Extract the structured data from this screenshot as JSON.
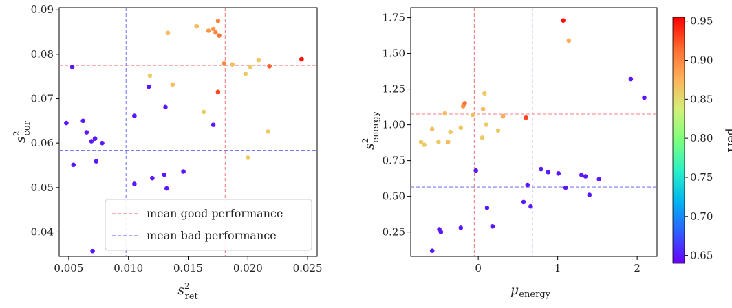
{
  "colors": {
    "good_line": "#f08080",
    "bad_line": "#7b7bf0",
    "colormap": [
      "#6a00ff",
      "#2f5cff",
      "#00b4f0",
      "#2af0c8",
      "#7dff7d",
      "#d2f07a",
      "#ffb15a",
      "#ff6a2e",
      "#ff0000"
    ]
  },
  "legend": {
    "good": "mean good performance",
    "bad": "mean bad performance"
  },
  "colorbar": {
    "label": "perf",
    "ticks": [
      "0.65",
      "0.70",
      "0.75",
      "0.80",
      "0.85",
      "0.90",
      "0.95"
    ],
    "range": [
      0.64,
      0.955
    ]
  },
  "chart_data": [
    {
      "type": "scatter",
      "xlabel": {
        "base": "s",
        "sup": "2",
        "sub": "ret"
      },
      "ylabel": {
        "base": "s",
        "sup": "2",
        "sub": "cor"
      },
      "xlim": [
        0.0042,
        0.0258
      ],
      "ylim": [
        0.0345,
        0.0905
      ],
      "xticks": [
        0.005,
        0.01,
        0.015,
        0.02,
        0.025
      ],
      "xtick_labels": [
        "0.005",
        "0.010",
        "0.015",
        "0.020",
        "0.025"
      ],
      "yticks": [
        0.04,
        0.05,
        0.06,
        0.07,
        0.08,
        0.09
      ],
      "ytick_labels": [
        "0.04",
        "0.05",
        "0.06",
        "0.07",
        "0.08",
        "0.09"
      ],
      "hlines": {
        "good": 0.0775,
        "bad": 0.0584
      },
      "vlines": {
        "good": 0.0181,
        "bad": 0.0098
      },
      "legend_position": "lower-right",
      "points": [
        {
          "x": 0.0053,
          "y": 0.0771,
          "perf": 0.65
        },
        {
          "x": 0.0048,
          "y": 0.0645,
          "perf": 0.65
        },
        {
          "x": 0.0054,
          "y": 0.0551,
          "perf": 0.65
        },
        {
          "x": 0.0062,
          "y": 0.065,
          "perf": 0.65
        },
        {
          "x": 0.0065,
          "y": 0.0624,
          "perf": 0.65
        },
        {
          "x": 0.0069,
          "y": 0.0604,
          "perf": 0.65
        },
        {
          "x": 0.0072,
          "y": 0.061,
          "perf": 0.65
        },
        {
          "x": 0.0073,
          "y": 0.0559,
          "perf": 0.65
        },
        {
          "x": 0.0078,
          "y": 0.06,
          "perf": 0.65
        },
        {
          "x": 0.007,
          "y": 0.0357,
          "perf": 0.65
        },
        {
          "x": 0.0105,
          "y": 0.0661,
          "perf": 0.65
        },
        {
          "x": 0.0105,
          "y": 0.0508,
          "perf": 0.65
        },
        {
          "x": 0.0117,
          "y": 0.0727,
          "perf": 0.65
        },
        {
          "x": 0.012,
          "y": 0.0521,
          "perf": 0.65
        },
        {
          "x": 0.013,
          "y": 0.0529,
          "perf": 0.65
        },
        {
          "x": 0.0131,
          "y": 0.0681,
          "perf": 0.65
        },
        {
          "x": 0.0132,
          "y": 0.0498,
          "perf": 0.65
        },
        {
          "x": 0.0146,
          "y": 0.0536,
          "perf": 0.65
        },
        {
          "x": 0.0171,
          "y": 0.0641,
          "perf": 0.65
        },
        {
          "x": 0.0118,
          "y": 0.0752,
          "perf": 0.86
        },
        {
          "x": 0.0133,
          "y": 0.0848,
          "perf": 0.87
        },
        {
          "x": 0.0137,
          "y": 0.0732,
          "perf": 0.87
        },
        {
          "x": 0.0157,
          "y": 0.0863,
          "perf": 0.87
        },
        {
          "x": 0.0163,
          "y": 0.067,
          "perf": 0.86
        },
        {
          "x": 0.0167,
          "y": 0.0853,
          "perf": 0.89
        },
        {
          "x": 0.0171,
          "y": 0.0857,
          "perf": 0.89
        },
        {
          "x": 0.0173,
          "y": 0.0849,
          "perf": 0.9
        },
        {
          "x": 0.0175,
          "y": 0.0875,
          "perf": 0.9
        },
        {
          "x": 0.0176,
          "y": 0.0842,
          "perf": 0.91
        },
        {
          "x": 0.0175,
          "y": 0.0715,
          "perf": 0.93
        },
        {
          "x": 0.018,
          "y": 0.0779,
          "perf": 0.9
        },
        {
          "x": 0.0187,
          "y": 0.0777,
          "perf": 0.87
        },
        {
          "x": 0.0198,
          "y": 0.0756,
          "perf": 0.86
        },
        {
          "x": 0.02,
          "y": 0.0567,
          "perf": 0.86
        },
        {
          "x": 0.0202,
          "y": 0.0771,
          "perf": 0.86
        },
        {
          "x": 0.0209,
          "y": 0.0787,
          "perf": 0.86
        },
        {
          "x": 0.0217,
          "y": 0.0626,
          "perf": 0.86
        },
        {
          "x": 0.0218,
          "y": 0.0773,
          "perf": 0.92
        },
        {
          "x": 0.0245,
          "y": 0.0789,
          "perf": 0.95
        }
      ]
    },
    {
      "type": "scatter",
      "xlabel": {
        "base": "μ",
        "sup": "",
        "sub": "energy"
      },
      "ylabel": {
        "base": "s",
        "sup": "2",
        "sub": "energy"
      },
      "xlim": [
        -0.85,
        2.25
      ],
      "ylim": [
        0.08,
        1.82
      ],
      "xticks": [
        0,
        1,
        2
      ],
      "xtick_labels": [
        "0",
        "1",
        "2"
      ],
      "yticks": [
        0.25,
        0.5,
        0.75,
        1.0,
        1.25,
        1.5,
        1.75
      ],
      "ytick_labels": [
        "0.25",
        "0.50",
        "0.75",
        "1.00",
        "1.25",
        "1.50",
        "1.75"
      ],
      "hlines": {
        "good": 1.075,
        "bad": 0.565
      },
      "vlines": {
        "good": -0.05,
        "bad": 0.68
      },
      "points": [
        {
          "x": -0.72,
          "y": 0.88,
          "perf": 0.86
        },
        {
          "x": -0.68,
          "y": 0.86,
          "perf": 0.86
        },
        {
          "x": -0.58,
          "y": 0.97,
          "perf": 0.87
        },
        {
          "x": -0.5,
          "y": 0.88,
          "perf": 0.86
        },
        {
          "x": -0.42,
          "y": 1.08,
          "perf": 0.87
        },
        {
          "x": -0.38,
          "y": 0.88,
          "perf": 0.87
        },
        {
          "x": -0.35,
          "y": 0.95,
          "perf": 0.86
        },
        {
          "x": -0.22,
          "y": 0.98,
          "perf": 0.86
        },
        {
          "x": -0.19,
          "y": 1.13,
          "perf": 0.89
        },
        {
          "x": -0.17,
          "y": 1.15,
          "perf": 0.91
        },
        {
          "x": -0.07,
          "y": 1.07,
          "perf": 0.87
        },
        {
          "x": 0.05,
          "y": 0.91,
          "perf": 0.86
        },
        {
          "x": 0.06,
          "y": 1.11,
          "perf": 0.87
        },
        {
          "x": 0.08,
          "y": 1.22,
          "perf": 0.86
        },
        {
          "x": 0.1,
          "y": 1.0,
          "perf": 0.86
        },
        {
          "x": 0.25,
          "y": 0.96,
          "perf": 0.86
        },
        {
          "x": 0.31,
          "y": 1.06,
          "perf": 0.88
        },
        {
          "x": 0.6,
          "y": 1.05,
          "perf": 0.93
        },
        {
          "x": 1.07,
          "y": 1.73,
          "perf": 0.95
        },
        {
          "x": 1.14,
          "y": 1.59,
          "perf": 0.88
        },
        {
          "x": -0.58,
          "y": 0.12,
          "perf": 0.65
        },
        {
          "x": -0.49,
          "y": 0.27,
          "perf": 0.65
        },
        {
          "x": -0.47,
          "y": 0.25,
          "perf": 0.65
        },
        {
          "x": -0.22,
          "y": 0.28,
          "perf": 0.65
        },
        {
          "x": -0.03,
          "y": 0.68,
          "perf": 0.65
        },
        {
          "x": 0.11,
          "y": 0.42,
          "perf": 0.65
        },
        {
          "x": 0.18,
          "y": 0.29,
          "perf": 0.65
        },
        {
          "x": 0.57,
          "y": 0.46,
          "perf": 0.65
        },
        {
          "x": 0.62,
          "y": 0.58,
          "perf": 0.65
        },
        {
          "x": 0.66,
          "y": 0.43,
          "perf": 0.65
        },
        {
          "x": 0.79,
          "y": 0.69,
          "perf": 0.65
        },
        {
          "x": 0.88,
          "y": 0.67,
          "perf": 0.65
        },
        {
          "x": 1.01,
          "y": 0.66,
          "perf": 0.65
        },
        {
          "x": 1.1,
          "y": 0.56,
          "perf": 0.65
        },
        {
          "x": 1.3,
          "y": 0.65,
          "perf": 0.65
        },
        {
          "x": 1.35,
          "y": 0.64,
          "perf": 0.65
        },
        {
          "x": 1.4,
          "y": 0.51,
          "perf": 0.65
        },
        {
          "x": 1.52,
          "y": 0.62,
          "perf": 0.65
        },
        {
          "x": 1.92,
          "y": 1.32,
          "perf": 0.65
        },
        {
          "x": 2.09,
          "y": 1.19,
          "perf": 0.65
        }
      ]
    }
  ]
}
